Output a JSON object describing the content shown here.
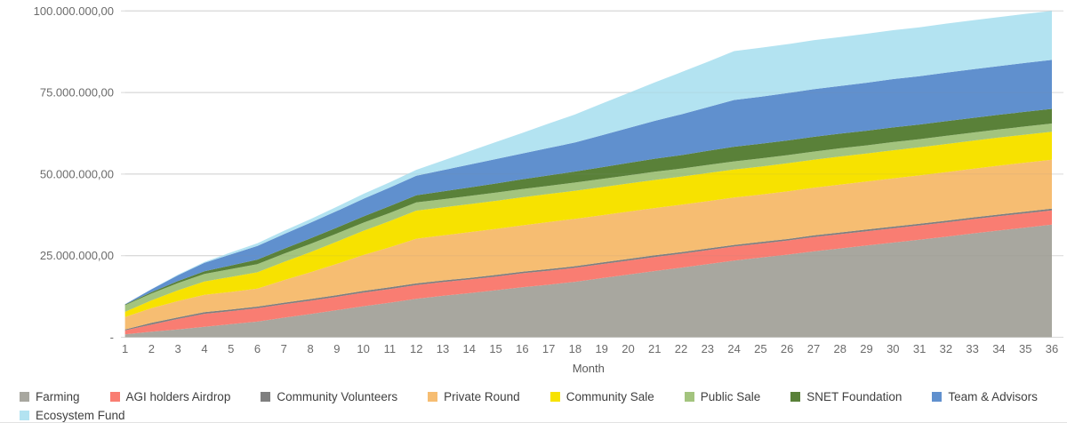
{
  "chart_data": {
    "type": "area",
    "stacked": true,
    "title": "",
    "xlabel": "Month",
    "ylabel": "",
    "unit": "tokens (values in millions)",
    "grid": true,
    "legend_position": "bottom-left",
    "x": [
      1,
      2,
      3,
      4,
      5,
      6,
      7,
      8,
      9,
      10,
      11,
      12,
      13,
      14,
      15,
      16,
      17,
      18,
      19,
      20,
      21,
      22,
      23,
      24,
      25,
      26,
      27,
      28,
      29,
      30,
      31,
      32,
      33,
      34,
      35,
      36
    ],
    "ylim_millions": [
      0,
      100
    ],
    "y_ticks": [
      {
        "value_millions": 0,
        "label": "-"
      },
      {
        "value_millions": 25,
        "label": "25.000.000,00"
      },
      {
        "value_millions": 50,
        "label": "50.000.000,00"
      },
      {
        "value_millions": 75,
        "label": "75.000.000,00"
      },
      {
        "value_millions": 100,
        "label": "100.000.000,00"
      }
    ],
    "series": [
      {
        "name": "Farming",
        "color": "#a8a79f",
        "values": [
          0.9,
          1.7,
          2.4,
          3.2,
          4.0,
          4.8,
          6.0,
          7.1,
          8.3,
          9.5,
          10.6,
          11.8,
          12.7,
          13.5,
          14.4,
          15.3,
          16.1,
          17.0,
          18.1,
          19.2,
          20.3,
          21.3,
          22.4,
          23.5,
          24.4,
          25.3,
          26.3,
          27.2,
          28.1,
          29.0,
          29.9,
          30.8,
          31.8,
          32.7,
          33.6,
          34.5
        ]
      },
      {
        "name": "AGI holders Airdrop",
        "color": "#f97d72",
        "values": [
          1.2,
          2.2,
          3.2,
          4.0,
          4.0,
          4.1,
          4.1,
          4.1,
          4.1,
          4.2,
          4.2,
          4.2,
          4.2,
          4.2,
          4.2,
          4.3,
          4.3,
          4.3,
          4.3,
          4.3,
          4.3,
          4.3,
          4.3,
          4.3,
          4.3,
          4.3,
          4.4,
          4.4,
          4.4,
          4.4,
          4.4,
          4.4,
          4.4,
          4.4,
          4.4,
          4.4
        ]
      },
      {
        "name": "Community Volunteers",
        "color": "#7f7f7f",
        "values": [
          0.3,
          0.5,
          0.5,
          0.5,
          0.5,
          0.5,
          0.5,
          0.5,
          0.5,
          0.5,
          0.5,
          0.5,
          0.5,
          0.5,
          0.5,
          0.5,
          0.5,
          0.5,
          0.5,
          0.5,
          0.5,
          0.5,
          0.5,
          0.5,
          0.5,
          0.5,
          0.5,
          0.5,
          0.5,
          0.5,
          0.5,
          0.5,
          0.5,
          0.5,
          0.5,
          0.5
        ]
      },
      {
        "name": "Private Round",
        "color": "#f6bd72",
        "values": [
          3.8,
          4.5,
          5.0,
          5.3,
          5.4,
          5.5,
          6.9,
          8.2,
          9.6,
          11.0,
          12.3,
          13.7,
          13.8,
          14.0,
          14.1,
          14.2,
          14.4,
          14.5,
          14.5,
          14.5,
          14.5,
          14.5,
          14.5,
          14.5,
          14.5,
          14.6,
          14.6,
          14.7,
          14.7,
          14.8,
          14.8,
          14.9,
          14.9,
          15.0,
          15.0,
          15.0
        ]
      },
      {
        "name": "Community Sale",
        "color": "#f7e200",
        "values": [
          1.6,
          2.4,
          3.3,
          4.1,
          4.6,
          5.0,
          5.6,
          6.2,
          6.8,
          7.4,
          8.0,
          8.6,
          8.6,
          8.6,
          8.6,
          8.6,
          8.6,
          8.6,
          8.6,
          8.6,
          8.6,
          8.6,
          8.6,
          8.6,
          8.6,
          8.6,
          8.6,
          8.6,
          8.6,
          8.6,
          8.6,
          8.6,
          8.6,
          8.6,
          8.6,
          8.6
        ]
      },
      {
        "name": "Public Sale",
        "color": "#a3c47e",
        "values": [
          2.0,
          2.1,
          2.2,
          2.3,
          2.4,
          2.5,
          2.5,
          2.5,
          2.5,
          2.5,
          2.5,
          2.5,
          2.5,
          2.5,
          2.5,
          2.5,
          2.5,
          2.5,
          2.5,
          2.5,
          2.5,
          2.5,
          2.5,
          2.5,
          2.5,
          2.5,
          2.5,
          2.5,
          2.5,
          2.5,
          2.5,
          2.5,
          2.5,
          2.5,
          2.5,
          2.5
        ]
      },
      {
        "name": "SNET Foundation",
        "color": "#5a8139",
        "values": [
          0.2,
          0.4,
          0.6,
          0.8,
          1.1,
          1.4,
          1.5,
          1.7,
          1.8,
          1.9,
          2.1,
          2.2,
          2.4,
          2.6,
          2.8,
          3.0,
          3.2,
          3.4,
          3.6,
          3.8,
          4.0,
          4.1,
          4.3,
          4.5,
          4.5,
          4.5,
          4.5,
          4.5,
          4.5,
          4.5,
          4.5,
          4.5,
          4.5,
          4.5,
          4.5,
          4.5
        ]
      },
      {
        "name": "Team & Advisors",
        "color": "#6090ce",
        "values": [
          0.1,
          0.9,
          1.8,
          2.6,
          3.4,
          4.2,
          4.5,
          4.8,
          5.1,
          5.4,
          5.7,
          6.0,
          6.5,
          7.0,
          7.5,
          7.9,
          8.4,
          8.9,
          9.8,
          10.7,
          11.6,
          12.5,
          13.4,
          14.3,
          14.4,
          14.5,
          14.6,
          14.6,
          14.7,
          14.8,
          14.8,
          14.9,
          14.9,
          14.9,
          15.0,
          15.0
        ]
      },
      {
        "name": "Ecosystem Fund",
        "color": "#b3e3f1",
        "values": [
          0.0,
          0.1,
          0.2,
          0.3,
          0.6,
          0.8,
          1.0,
          1.1,
          1.3,
          1.5,
          1.6,
          1.8,
          2.9,
          4.1,
          5.2,
          6.3,
          7.5,
          8.6,
          9.7,
          10.7,
          11.8,
          12.9,
          13.9,
          15.0,
          15.0,
          15.0,
          15.0,
          15.0,
          15.0,
          15.0,
          15.0,
          15.0,
          15.0,
          15.0,
          15.0,
          15.0
        ]
      }
    ],
    "legend_rows": [
      [
        0,
        1,
        2,
        3,
        4,
        5,
        6,
        7
      ],
      [
        8
      ]
    ]
  },
  "layout_labels": {
    "x_axis_title": "Month"
  }
}
